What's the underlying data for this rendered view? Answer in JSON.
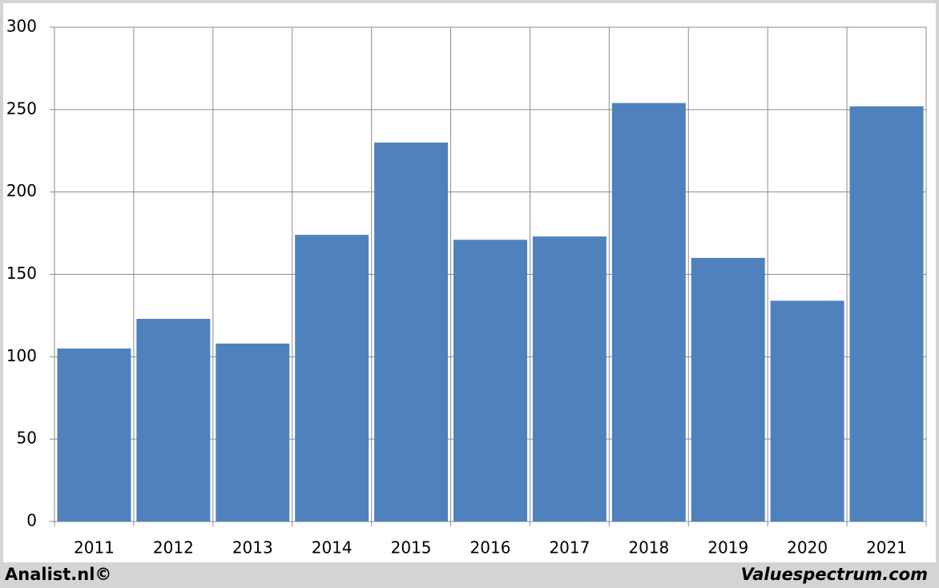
{
  "chart_data": {
    "type": "bar",
    "categories": [
      "2011",
      "2012",
      "2013",
      "2014",
      "2015",
      "2016",
      "2017",
      "2018",
      "2019",
      "2020",
      "2021"
    ],
    "values": [
      105,
      123,
      108,
      174,
      230,
      171,
      173,
      254,
      160,
      134,
      252
    ],
    "color": "#4f81bd",
    "ylim": [
      0,
      300
    ],
    "yticks": [
      0,
      50,
      100,
      150,
      200,
      250,
      300
    ],
    "grid": true,
    "annotations": [
      "Analist.nl©",
      "Valuespectrum.com"
    ]
  }
}
